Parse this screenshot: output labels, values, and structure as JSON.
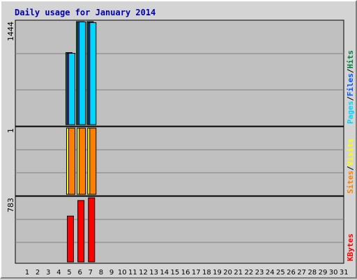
{
  "chart_data": {
    "type": "bar",
    "title": "Daily usage for January 2014",
    "categories": [
      "1",
      "2",
      "3",
      "4",
      "5",
      "6",
      "7",
      "8",
      "9",
      "10",
      "11",
      "12",
      "13",
      "14",
      "15",
      "16",
      "17",
      "18",
      "19",
      "20",
      "21",
      "22",
      "23",
      "24",
      "25",
      "26",
      "27",
      "28",
      "29",
      "30",
      "31"
    ],
    "weekend_days": [
      "4",
      "5",
      "11",
      "12",
      "18",
      "19",
      "25",
      "26"
    ],
    "panels": [
      {
        "id": "hits",
        "ymax_label": "1444",
        "ymax": 1444,
        "legend": [
          "Pages",
          "/",
          "Files",
          "/",
          "Hits"
        ],
        "legend_colors": [
          "#00d5ff",
          "#000000",
          "#0055ff",
          "#000000",
          "#008040"
        ],
        "series": [
          {
            "name": "Hits",
            "color": "#008040",
            "values": [
              0,
              0,
              0,
              0,
              1010,
              1444,
              1444,
              0,
              0,
              0,
              0,
              0,
              0,
              0,
              0,
              0,
              0,
              0,
              0,
              0,
              0,
              0,
              0,
              0,
              0,
              0,
              0,
              0,
              0,
              0,
              0
            ]
          },
          {
            "name": "Files",
            "color": "#0055ff",
            "values": [
              0,
              0,
              0,
              0,
              1000,
              1444,
              1430,
              0,
              0,
              0,
              0,
              0,
              0,
              0,
              0,
              0,
              0,
              0,
              0,
              0,
              0,
              0,
              0,
              0,
              0,
              0,
              0,
              0,
              0,
              0,
              0
            ]
          },
          {
            "name": "Pages",
            "color": "#00d5ff",
            "values": [
              0,
              0,
              0,
              0,
              1000,
              1440,
              1430,
              0,
              0,
              0,
              0,
              0,
              0,
              0,
              0,
              0,
              0,
              0,
              0,
              0,
              0,
              0,
              0,
              0,
              0,
              0,
              0,
              0,
              0,
              0,
              0
            ]
          }
        ]
      },
      {
        "id": "visits",
        "ymax_label": "1",
        "ymax": 1,
        "legend": [
          "Sites",
          "/",
          "Visits"
        ],
        "legend_colors": [
          "#ff8000",
          "#000000",
          "#ffff00"
        ],
        "series": [
          {
            "name": "Visits",
            "color": "#ffff00",
            "values": [
              0,
              0,
              0,
              0,
              1,
              1,
              1,
              0,
              0,
              0,
              0,
              0,
              0,
              0,
              0,
              0,
              0,
              0,
              0,
              0,
              0,
              0,
              0,
              0,
              0,
              0,
              0,
              0,
              0,
              0,
              0
            ]
          },
          {
            "name": "Sites",
            "color": "#ff8000",
            "values": [
              0,
              0,
              0,
              0,
              1,
              1,
              1,
              0,
              0,
              0,
              0,
              0,
              0,
              0,
              0,
              0,
              0,
              0,
              0,
              0,
              0,
              0,
              0,
              0,
              0,
              0,
              0,
              0,
              0,
              0,
              0
            ]
          }
        ]
      },
      {
        "id": "kbytes",
        "ymax_label": "783",
        "ymax": 783,
        "legend": [
          "KBytes"
        ],
        "legend_colors": [
          "#ff0000"
        ],
        "series": [
          {
            "name": "KBytes",
            "color": "#ff0000",
            "values": [
              0,
              0,
              0,
              0,
              560,
              750,
              783,
              0,
              0,
              0,
              0,
              0,
              0,
              0,
              0,
              0,
              0,
              0,
              0,
              0,
              0,
              0,
              0,
              0,
              0,
              0,
              0,
              0,
              0,
              0,
              0
            ]
          }
        ]
      }
    ],
    "colors": {
      "plot_bg": "#c0c0c0",
      "grid": "#808080",
      "weekday_label": "#000000",
      "weekend_label": "#008040"
    }
  }
}
